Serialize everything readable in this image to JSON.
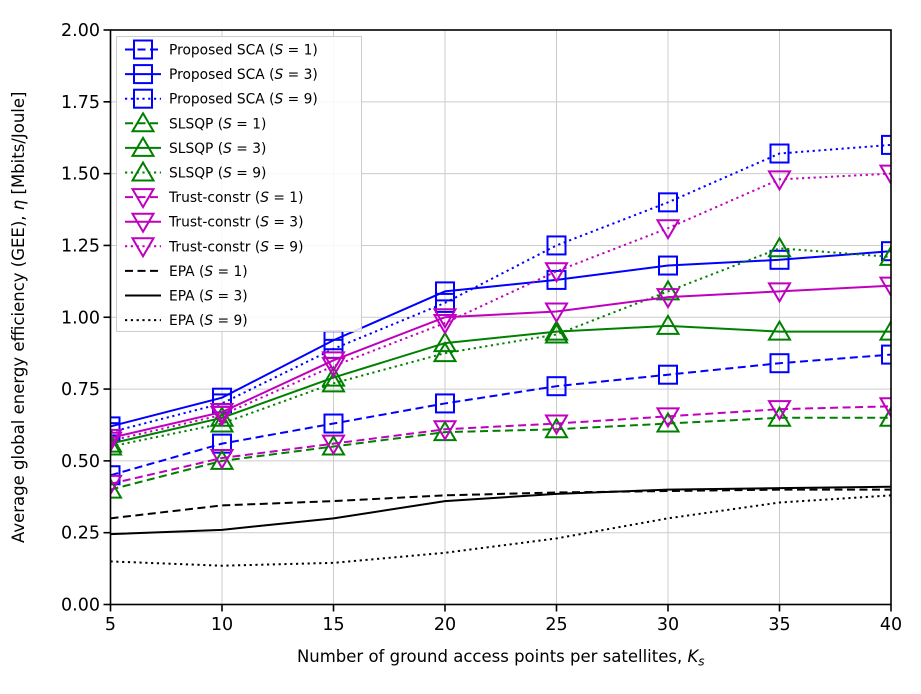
{
  "chart_data": {
    "type": "line",
    "title": "",
    "xlabel": {
      "text": "Number of ground access points per satellites, ",
      "var": "K",
      "var_sub": "s"
    },
    "ylabel": {
      "prefix": "Average global energy efficiency (GEE), ",
      "var": "η",
      "suffix": " [Mbits/Joule]"
    },
    "xlim": [
      5,
      40
    ],
    "ylim": [
      0.0,
      2.0
    ],
    "grid": true,
    "legend_position": "upper-left",
    "x_ticks": [
      "5",
      "10",
      "15",
      "20",
      "25",
      "30",
      "35",
      "40"
    ],
    "y_ticks": [
      "0.00",
      "0.25",
      "0.50",
      "0.75",
      "1.00",
      "1.25",
      "1.50",
      "1.75",
      "2.00"
    ],
    "x": [
      5,
      10,
      15,
      20,
      25,
      30,
      35,
      40
    ],
    "series": [
      {
        "label": "Proposed SCA (S = 1)",
        "color": "#0000ff",
        "linestyle": "dashed",
        "marker": "square",
        "values": [
          0.45,
          0.56,
          0.63,
          0.7,
          0.76,
          0.8,
          0.84,
          0.87
        ]
      },
      {
        "label": "Proposed SCA (S = 3)",
        "color": "#0000ff",
        "linestyle": "solid",
        "marker": "square",
        "values": [
          0.62,
          0.72,
          0.92,
          1.09,
          1.13,
          1.18,
          1.2,
          1.23
        ]
      },
      {
        "label": "Proposed SCA (S = 9)",
        "color": "#0000ff",
        "linestyle": "dotted",
        "marker": "square",
        "values": [
          0.6,
          0.7,
          0.89,
          1.05,
          1.25,
          1.4,
          1.57,
          1.6
        ]
      },
      {
        "label": "SLSQP (S = 1)",
        "color": "#008000",
        "linestyle": "dashed",
        "marker": "triangle-up",
        "values": [
          0.4,
          0.5,
          0.55,
          0.6,
          0.61,
          0.63,
          0.65,
          0.65
        ]
      },
      {
        "label": "SLSQP (S = 3)",
        "color": "#008000",
        "linestyle": "solid",
        "marker": "triangle-up",
        "values": [
          0.56,
          0.65,
          0.79,
          0.91,
          0.95,
          0.97,
          0.95,
          0.95
        ]
      },
      {
        "label": "SLSQP (S = 9)",
        "color": "#008000",
        "linestyle": "dotted",
        "marker": "triangle-up",
        "values": [
          0.55,
          0.63,
          0.77,
          0.875,
          0.94,
          1.09,
          1.24,
          1.21
        ]
      },
      {
        "label": "Trust-constr (S = 1)",
        "color": "#bf00bf",
        "linestyle": "dashed",
        "marker": "triangle-down",
        "values": [
          0.42,
          0.51,
          0.56,
          0.61,
          0.63,
          0.655,
          0.68,
          0.69
        ]
      },
      {
        "label": "Trust-constr (S = 3)",
        "color": "#bf00bf",
        "linestyle": "solid",
        "marker": "triangle-down",
        "values": [
          0.58,
          0.67,
          0.85,
          1.0,
          1.02,
          1.07,
          1.09,
          1.11
        ]
      },
      {
        "label": "Trust-constr (S = 9)",
        "color": "#bf00bf",
        "linestyle": "dotted",
        "marker": "triangle-down",
        "values": [
          0.57,
          0.66,
          0.83,
          0.98,
          1.16,
          1.31,
          1.48,
          1.5
        ]
      },
      {
        "label": "EPA (S = 1)",
        "color": "#000000",
        "linestyle": "dashed",
        "marker": "none",
        "values": [
          0.3,
          0.345,
          0.36,
          0.38,
          0.39,
          0.395,
          0.4,
          0.4
        ]
      },
      {
        "label": "EPA (S = 3)",
        "color": "#000000",
        "linestyle": "solid",
        "marker": "none",
        "values": [
          0.245,
          0.26,
          0.3,
          0.36,
          0.385,
          0.4,
          0.405,
          0.41
        ]
      },
      {
        "label": "EPA (S = 9)",
        "color": "#000000",
        "linestyle": "dotted",
        "marker": "none",
        "values": [
          0.15,
          0.135,
          0.145,
          0.18,
          0.23,
          0.3,
          0.355,
          0.38
        ]
      }
    ]
  },
  "style_colors": {
    "blue": "#0000ff",
    "green": "#008000",
    "magenta": "#bf00bf",
    "black": "#000000",
    "grid": "#cccccc",
    "legend_border": "#cccccc"
  }
}
